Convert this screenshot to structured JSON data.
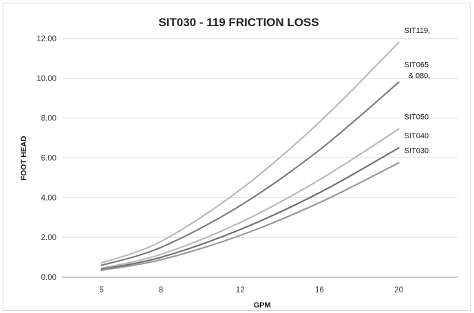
{
  "chart_data": {
    "type": "line",
    "title": "SIT030 - 119 FRICTION LOSS",
    "xlabel": "GPM",
    "ylabel": "FOOT HEAD",
    "x": [
      5,
      8,
      12,
      16,
      20
    ],
    "xlim": [
      3,
      23
    ],
    "ylim": [
      0,
      12
    ],
    "yticks": [
      "0.00",
      "2.00",
      "4.00",
      "6.00",
      "8.00",
      "10.00",
      "12.00"
    ],
    "xticks": [
      "5",
      "8",
      "12",
      "16",
      "20"
    ],
    "grid": "horizontal",
    "series": [
      {
        "name": "SIT119,",
        "color": "#b9b9b9",
        "values": [
          0.72,
          1.8,
          4.4,
          7.8,
          11.8
        ]
      },
      {
        "name": "SIT065 & 080,",
        "label_lines": [
          "SIT065",
          "& 080,"
        ],
        "color": "#7a7a7a",
        "values": [
          0.6,
          1.5,
          3.6,
          6.4,
          9.8
        ]
      },
      {
        "name": "SIT050",
        "color": "#b9b9b9",
        "values": [
          0.45,
          1.15,
          2.75,
          4.9,
          7.45
        ]
      },
      {
        "name": "SIT040",
        "color": "#6e6e6e",
        "values": [
          0.4,
          1.0,
          2.4,
          4.25,
          6.5
        ]
      },
      {
        "name": "SIT030",
        "color": "#999999",
        "values": [
          0.35,
          0.88,
          2.1,
          3.75,
          5.75
        ]
      }
    ]
  }
}
